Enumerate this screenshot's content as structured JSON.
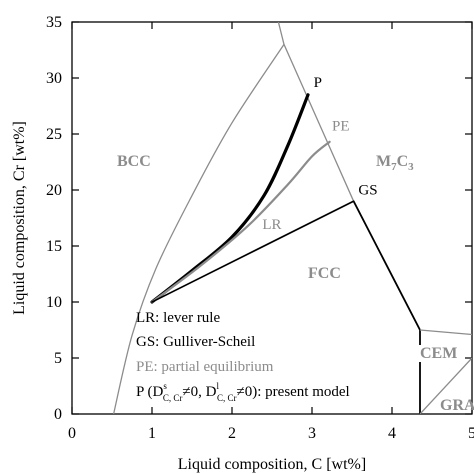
{
  "chart_data": {
    "type": "line",
    "xlabel": "Liquid composition, C [wt%]",
    "ylabel": "Liquid composition, Cr [wt%]",
    "xlim": [
      0,
      5
    ],
    "ylim": [
      0,
      35
    ],
    "x_ticks": [
      "0",
      "1",
      "2",
      "3",
      "4",
      "5"
    ],
    "y_ticks": [
      "0",
      "5",
      "10",
      "15",
      "20",
      "25",
      "30",
      "35"
    ],
    "grid": false,
    "colors": {
      "black": "#000000",
      "gray": "#8c8c8c"
    },
    "phase_boundaries": [
      {
        "color": "gray",
        "points": [
          [
            0.52,
            0
          ],
          [
            0.75,
            7
          ],
          [
            1.05,
            13
          ],
          [
            1.5,
            19.5
          ],
          [
            2.0,
            26
          ],
          [
            2.65,
            33
          ]
        ]
      },
      {
        "color": "gray",
        "points": [
          [
            2.58,
            35
          ],
          [
            2.65,
            33
          ],
          [
            3.52,
            19
          ]
        ]
      },
      {
        "color": "black",
        "points": [
          [
            3.52,
            19
          ],
          [
            4.35,
            7.5
          ],
          [
            4.35,
            0
          ]
        ]
      },
      {
        "color": "gray",
        "points": [
          [
            4.35,
            7.5
          ],
          [
            5.0,
            7.1
          ]
        ]
      },
      {
        "color": "gray",
        "points": [
          [
            4.35,
            0
          ],
          [
            5.0,
            5.0
          ]
        ]
      }
    ],
    "series": [
      {
        "label": "P",
        "color": "black",
        "width": 3.2,
        "points": [
          [
            1,
            10
          ],
          [
            1.5,
            12.8
          ],
          [
            2,
            15.8
          ],
          [
            2.4,
            19.5
          ],
          [
            2.7,
            24
          ],
          [
            2.95,
            28.5
          ]
        ]
      },
      {
        "label": "PE",
        "color": "gray",
        "width": 2.2,
        "points": [
          [
            1,
            10
          ],
          [
            1.6,
            13.2
          ],
          [
            2.2,
            16.8
          ],
          [
            2.7,
            20.5
          ],
          [
            3.0,
            23
          ],
          [
            3.22,
            24.3
          ]
        ]
      },
      {
        "label": "LR",
        "color": "black",
        "width": 1.5,
        "points": [
          [
            1,
            10
          ],
          [
            3.52,
            19
          ]
        ]
      },
      {
        "label": "GS",
        "color": "black",
        "width": 1.5,
        "points": [
          [
            1,
            10
          ],
          [
            3.52,
            19
          ]
        ]
      }
    ],
    "point_labels": [
      {
        "text": "P",
        "color": "black",
        "x": 3.02,
        "y": 29.2
      },
      {
        "text": "PE",
        "color": "gray",
        "x": 3.25,
        "y": 25.3
      },
      {
        "text": "GS",
        "color": "black",
        "x": 3.58,
        "y": 19.6
      },
      {
        "text": "LR",
        "color": "gray",
        "x": 2.38,
        "y": 16.5
      }
    ],
    "phase_labels": [
      {
        "main": "BCC",
        "color": "gray"
      },
      {
        "main": "M",
        "sub1": "7",
        "mid": "C",
        "sub2": "3",
        "color": "gray"
      },
      {
        "main": "FCC",
        "color": "gray"
      },
      {
        "main": "CEM",
        "color": "gray",
        "boxed": true
      },
      {
        "main": "GRA",
        "color": "gray"
      }
    ],
    "legend": {
      "placement": "bottom-left",
      "entries": [
        {
          "text": "LR: lever rule",
          "color": "black"
        },
        {
          "text": "GS: Gulliver-Scheil",
          "color": "black"
        },
        {
          "text": "PE: partial equilibrium",
          "color": "gray"
        },
        {
          "text": "present_model",
          "color": "black"
        }
      ],
      "model_entry": {
        "prefix": "P (D",
        "sup1": "s",
        "sub1": "C, Cr",
        "mid": "≠0, D",
        "sup2": "l",
        "sub2": "C, Cr",
        "suffix": "≠0): present model"
      }
    }
  }
}
